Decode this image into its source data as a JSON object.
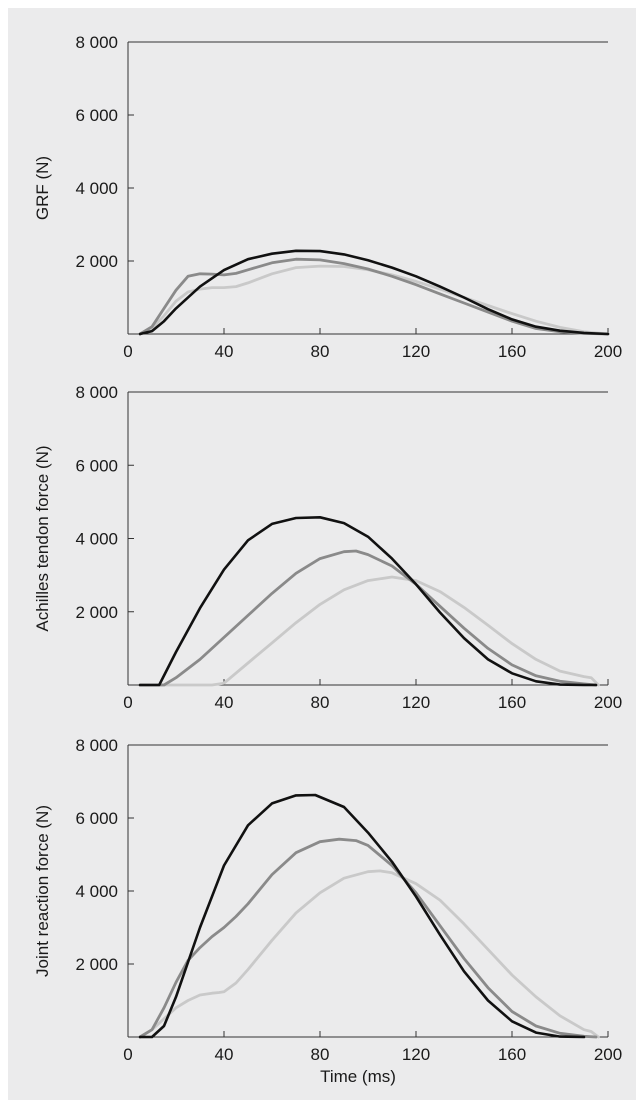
{
  "chart_data": [
    {
      "type": "line",
      "ylabel": "GRF (N)",
      "xlabel": "",
      "xlim": [
        0,
        200
      ],
      "ylim": [
        0,
        8000
      ],
      "xticks": [
        "0",
        "40",
        "80",
        "120",
        "160",
        "200"
      ],
      "yticks": [
        "2 000",
        "4 000",
        "6 000",
        "8 000"
      ],
      "colors": [
        "#111111",
        "#8a8a8a",
        "#c9c9c9"
      ],
      "series": [
        {
          "x": [
            5,
            10,
            15,
            20,
            30,
            40,
            50,
            60,
            70,
            80,
            90,
            100,
            110,
            120,
            130,
            140,
            150,
            160,
            170,
            180,
            190,
            195,
            200
          ],
          "y": [
            0,
            80,
            350,
            700,
            1300,
            1750,
            2050,
            2200,
            2280,
            2270,
            2180,
            2020,
            1820,
            1580,
            1300,
            1000,
            680,
            400,
            200,
            90,
            30,
            15,
            0
          ]
        },
        {
          "x": [
            5,
            10,
            15,
            20,
            25,
            30,
            35,
            40,
            45,
            50,
            60,
            70,
            80,
            90,
            100,
            110,
            120,
            130,
            140,
            150,
            160,
            170,
            180,
            190,
            200
          ],
          "y": [
            0,
            200,
            700,
            1200,
            1580,
            1650,
            1640,
            1620,
            1660,
            1760,
            1950,
            2050,
            2030,
            1930,
            1780,
            1580,
            1350,
            1100,
            850,
            600,
            350,
            150,
            60,
            20,
            0
          ]
        },
        {
          "x": [
            5,
            10,
            15,
            20,
            25,
            30,
            35,
            40,
            45,
            50,
            60,
            70,
            80,
            90,
            100,
            110,
            120,
            130,
            140,
            150,
            160,
            170,
            180,
            190,
            200
          ],
          "y": [
            0,
            150,
            500,
            900,
            1150,
            1230,
            1270,
            1270,
            1300,
            1400,
            1650,
            1820,
            1860,
            1850,
            1760,
            1620,
            1440,
            1230,
            1000,
            780,
            560,
            350,
            180,
            60,
            0
          ]
        }
      ]
    },
    {
      "type": "line",
      "ylabel": "Achilles tendon force (N)",
      "xlabel": "",
      "xlim": [
        0,
        200
      ],
      "ylim": [
        0,
        8000
      ],
      "xticks": [
        "0",
        "40",
        "80",
        "120",
        "160",
        "200"
      ],
      "yticks": [
        "2 000",
        "4 000",
        "6 000",
        "8 000"
      ],
      "colors": [
        "#111111",
        "#8a8a8a",
        "#c9c9c9"
      ],
      "series": [
        {
          "x": [
            5,
            13,
            20,
            30,
            40,
            50,
            60,
            70,
            80,
            90,
            100,
            110,
            120,
            130,
            140,
            150,
            160,
            170,
            180,
            190,
            195
          ],
          "y": [
            0,
            0,
            900,
            2100,
            3150,
            3950,
            4400,
            4560,
            4580,
            4420,
            4050,
            3450,
            2750,
            1980,
            1280,
            700,
            320,
            100,
            10,
            0,
            0
          ]
        },
        {
          "x": [
            5,
            15,
            20,
            30,
            40,
            50,
            60,
            70,
            80,
            90,
            95,
            100,
            110,
            120,
            130,
            140,
            150,
            160,
            170,
            180,
            190,
            195
          ],
          "y": [
            0,
            0,
            200,
            700,
            1300,
            1900,
            2500,
            3050,
            3450,
            3640,
            3660,
            3560,
            3250,
            2750,
            2150,
            1550,
            1000,
            550,
            250,
            100,
            30,
            0
          ]
        },
        {
          "x": [
            5,
            35,
            40,
            50,
            60,
            70,
            80,
            90,
            100,
            110,
            120,
            130,
            140,
            150,
            160,
            170,
            180,
            190,
            193,
            196
          ],
          "y": [
            0,
            0,
            50,
            600,
            1150,
            1700,
            2200,
            2600,
            2850,
            2950,
            2850,
            2550,
            2120,
            1630,
            1130,
            700,
            380,
            230,
            200,
            0
          ]
        }
      ]
    },
    {
      "type": "line",
      "ylabel": "Joint reaction force (N)",
      "xlabel": "Time (ms)",
      "xlim": [
        0,
        200
      ],
      "ylim": [
        0,
        8000
      ],
      "xticks": [
        "0",
        "40",
        "80",
        "120",
        "160",
        "200"
      ],
      "yticks": [
        "2 000",
        "4 000",
        "6 000",
        "8 000"
      ],
      "colors": [
        "#111111",
        "#8a8a8a",
        "#c9c9c9"
      ],
      "series": [
        {
          "x": [
            5,
            10,
            15,
            20,
            30,
            40,
            50,
            60,
            70,
            78,
            90,
            100,
            110,
            120,
            130,
            140,
            150,
            160,
            170,
            180,
            190
          ],
          "y": [
            0,
            0,
            300,
            1100,
            3000,
            4700,
            5800,
            6400,
            6620,
            6630,
            6300,
            5600,
            4800,
            3850,
            2800,
            1800,
            1000,
            430,
            120,
            10,
            0
          ]
        },
        {
          "x": [
            5,
            10,
            15,
            20,
            25,
            30,
            35,
            40,
            45,
            50,
            60,
            70,
            80,
            88,
            95,
            100,
            110,
            120,
            130,
            140,
            150,
            160,
            170,
            180,
            190,
            195
          ],
          "y": [
            0,
            200,
            800,
            1500,
            2100,
            2450,
            2750,
            3000,
            3300,
            3650,
            4450,
            5050,
            5350,
            5420,
            5380,
            5250,
            4700,
            3950,
            3050,
            2150,
            1350,
            700,
            300,
            100,
            20,
            0
          ]
        },
        {
          "x": [
            5,
            10,
            15,
            20,
            25,
            30,
            35,
            38,
            40,
            45,
            50,
            60,
            70,
            80,
            90,
            100,
            105,
            110,
            120,
            130,
            140,
            150,
            160,
            170,
            180,
            190,
            193,
            196
          ],
          "y": [
            0,
            200,
            500,
            800,
            1000,
            1150,
            1200,
            1220,
            1240,
            1480,
            1850,
            2650,
            3400,
            3950,
            4350,
            4530,
            4550,
            4500,
            4200,
            3750,
            3100,
            2400,
            1700,
            1100,
            580,
            200,
            150,
            0
          ]
        }
      ]
    }
  ]
}
